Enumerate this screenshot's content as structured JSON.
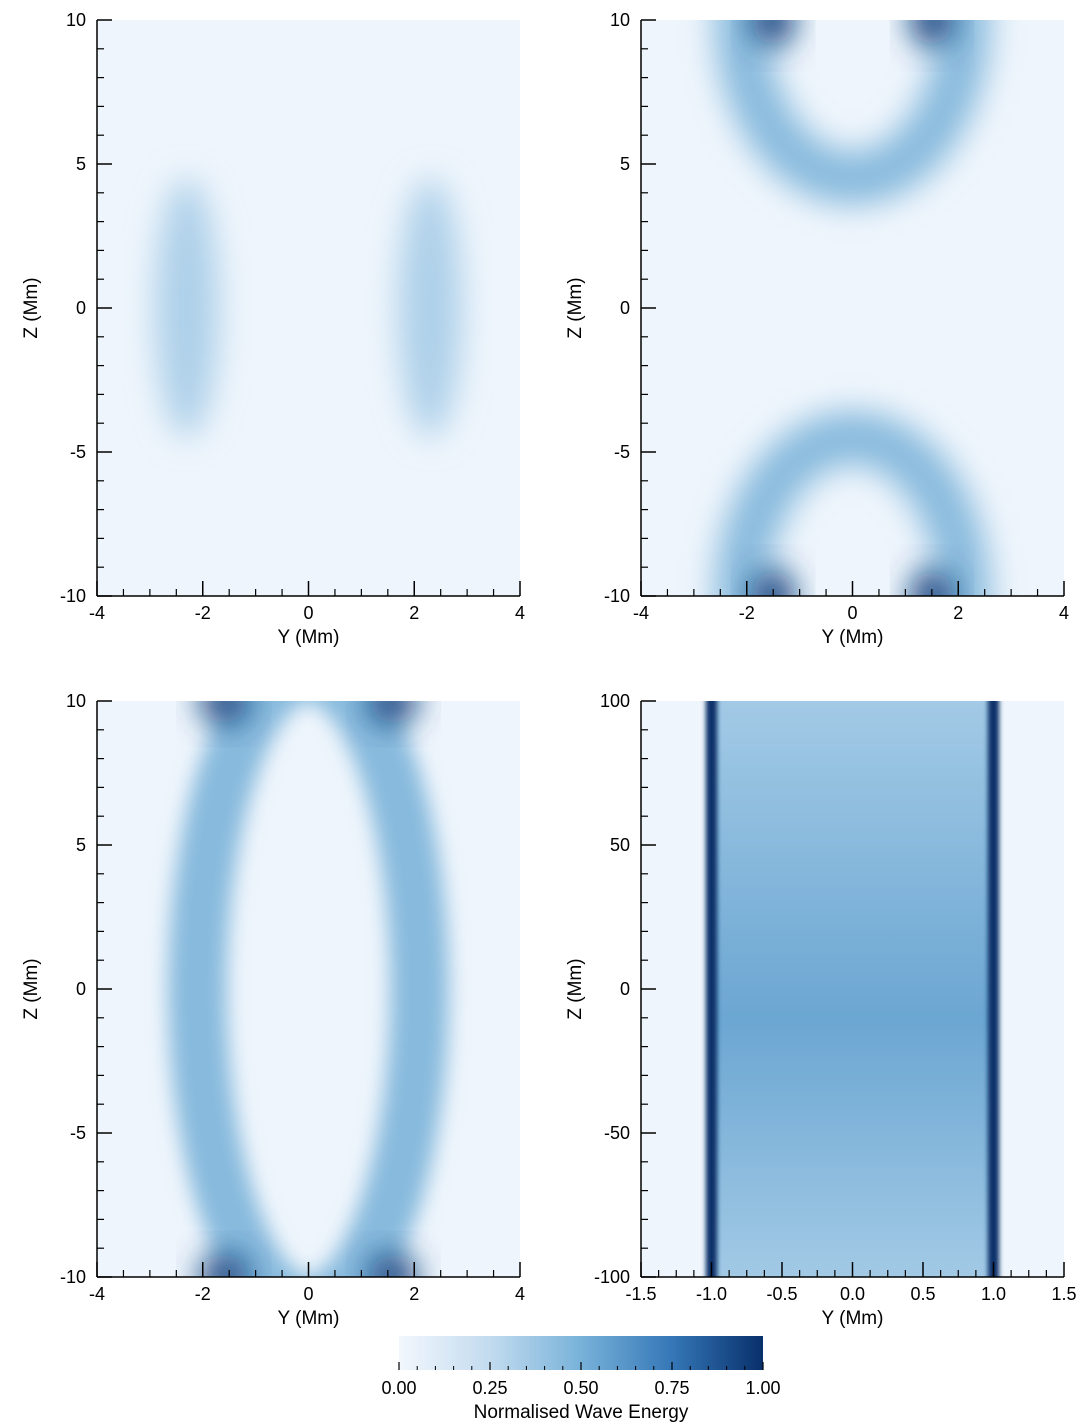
{
  "chart_data": [
    {
      "type": "heatmap",
      "xlabel": "Y (Mm)",
      "ylabel": "Z (Mm)",
      "xlim": [
        -4,
        4
      ],
      "ylim": [
        -10,
        10
      ],
      "xticks": [
        -4,
        -2,
        0,
        2,
        4
      ],
      "yticks": [
        -10,
        -5,
        0,
        5,
        10
      ],
      "xtick_labels": [
        "-4",
        "-2",
        "0",
        "2",
        "4"
      ],
      "ytick_labels": [
        "-10",
        "-5",
        "0",
        "5",
        "10"
      ],
      "features": [
        {
          "shape": "ellipse",
          "y": -2.3,
          "z": 0,
          "width": 0.6,
          "height": 4.5,
          "value": 0.32
        },
        {
          "shape": "ellipse",
          "y": 2.3,
          "z": 0,
          "width": 0.6,
          "height": 4.5,
          "value": 0.32
        }
      ]
    },
    {
      "type": "heatmap",
      "xlabel": "Y (Mm)",
      "ylabel": "Z (Mm)",
      "xlim": [
        -4,
        4
      ],
      "ylim": [
        -10,
        10
      ],
      "xticks": [
        -4,
        -2,
        0,
        2,
        4
      ],
      "yticks": [
        -10,
        -5,
        0,
        5,
        10
      ],
      "xtick_labels": [
        "-4",
        "-2",
        "0",
        "2",
        "4"
      ],
      "ytick_labels": [
        "-10",
        "-5",
        "0",
        "5",
        "10"
      ],
      "features": [
        {
          "shape": "arc",
          "a": 2.1,
          "zc": 10,
          "r": 5.5,
          "width": 0.5,
          "value": 0.45
        },
        {
          "shape": "arc",
          "a": 2.1,
          "zc": -10,
          "r": 5.5,
          "width": 0.5,
          "value": 0.45
        },
        {
          "shape": "ellipse",
          "y": -1.5,
          "z": 10,
          "width": 0.4,
          "height": 0.9,
          "value": 0.95
        },
        {
          "shape": "ellipse",
          "y": 1.5,
          "z": 10,
          "width": 0.4,
          "height": 0.9,
          "value": 0.95
        },
        {
          "shape": "ellipse",
          "y": -1.5,
          "z": -10,
          "width": 0.4,
          "height": 0.9,
          "value": 0.95
        },
        {
          "shape": "ellipse",
          "y": 1.5,
          "z": -10,
          "width": 0.4,
          "height": 0.9,
          "value": 0.95
        }
      ]
    },
    {
      "type": "heatmap",
      "xlabel": "Y (Mm)",
      "ylabel": "Z (Mm)",
      "xlim": [
        -4,
        4
      ],
      "ylim": [
        -10,
        10
      ],
      "xticks": [
        -4,
        -2,
        0,
        2,
        4
      ],
      "yticks": [
        -10,
        -5,
        0,
        5,
        10
      ],
      "xtick_labels": [
        "-4",
        "-2",
        "0",
        "2",
        "4"
      ],
      "ytick_labels": [
        "-10",
        "-5",
        "0",
        "5",
        "10"
      ],
      "features": [
        {
          "shape": "ring",
          "a": 2.1,
          "b": 11.0,
          "width": 0.55,
          "value": 0.45
        },
        {
          "shape": "ellipse",
          "y": -1.6,
          "z": 10,
          "width": 0.45,
          "height": 0.8,
          "value": 0.95
        },
        {
          "shape": "ellipse",
          "y": 1.6,
          "z": 10,
          "width": 0.45,
          "height": 0.8,
          "value": 0.95
        },
        {
          "shape": "ellipse",
          "y": -1.6,
          "z": -10,
          "width": 0.45,
          "height": 0.8,
          "value": 0.95
        },
        {
          "shape": "ellipse",
          "y": 1.6,
          "z": -10,
          "width": 0.45,
          "height": 0.8,
          "value": 0.95
        }
      ]
    },
    {
      "type": "heatmap",
      "xlabel": "Y (Mm)",
      "ylabel": "Z (Mm)",
      "xlim": [
        -1.5,
        1.5
      ],
      "ylim": [
        -100,
        100
      ],
      "xticks": [
        -1.5,
        -1.0,
        -0.5,
        0.0,
        0.5,
        1.0,
        1.5
      ],
      "yticks": [
        -100,
        -50,
        0,
        50,
        100
      ],
      "xtick_labels": [
        "-1.5",
        "-1.0",
        "-0.5",
        "0.0",
        "0.5",
        "1.0",
        "1.5"
      ],
      "ytick_labels": [
        "-100",
        "-50",
        "0",
        "50",
        "100"
      ],
      "interior": {
        "y_min": -1.0,
        "y_max": 1.0,
        "value_edge": 0.35,
        "value_center": 0.55
      },
      "features": [
        {
          "shape": "column",
          "y": -1.0,
          "width": 0.08,
          "value": 1.0
        },
        {
          "shape": "column",
          "y": 1.0,
          "width": 0.08,
          "value": 1.0
        }
      ]
    }
  ],
  "colorbar": {
    "title": "Normalised Wave Energy",
    "range": [
      0,
      1
    ],
    "ticks": [
      0,
      0.25,
      0.5,
      0.75,
      1.0
    ],
    "tick_labels": [
      "0.00",
      "0.25",
      "0.50",
      "0.75",
      "1.00"
    ],
    "color_low": "#f2f7fd",
    "color_high": "#08306b"
  }
}
